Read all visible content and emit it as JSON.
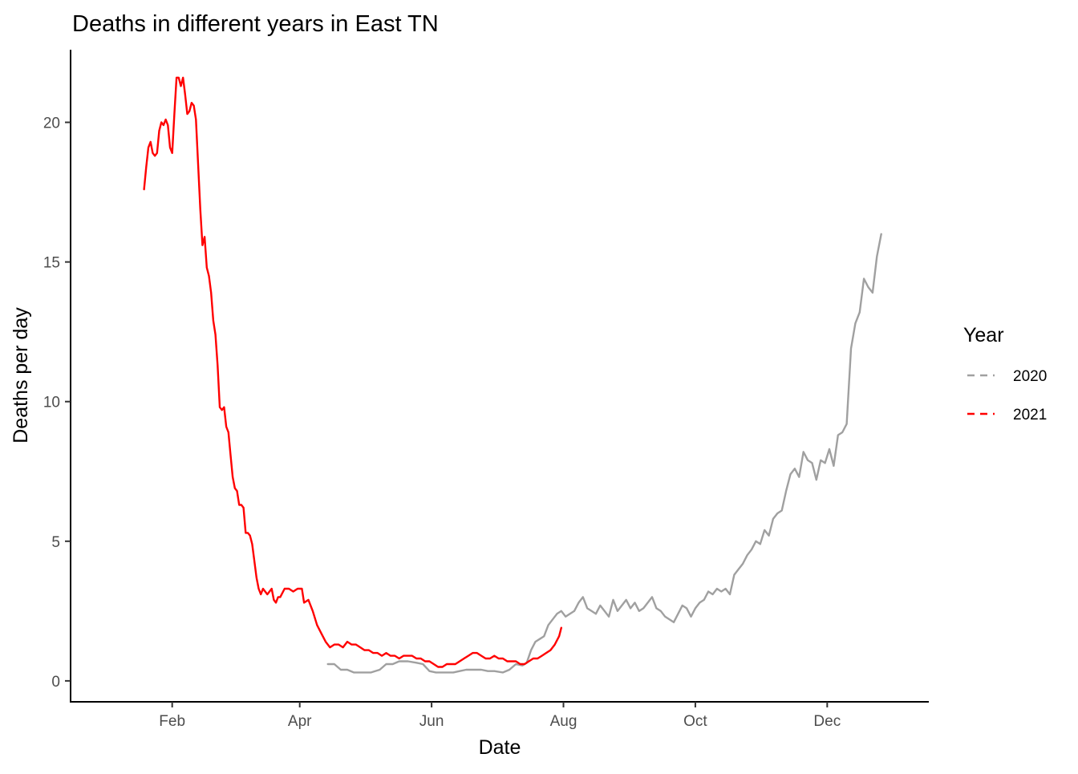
{
  "chart_data": {
    "type": "line",
    "title": "Deaths in different years in East TN",
    "xlabel": "Date",
    "ylabel": "Deaths per day",
    "x_ticks": [
      {
        "label": "Feb",
        "day": 32
      },
      {
        "label": "Apr",
        "day": 91
      },
      {
        "label": "Jun",
        "day": 152
      },
      {
        "label": "Aug",
        "day": 213
      },
      {
        "label": "Oct",
        "day": 274
      },
      {
        "label": "Dec",
        "day": 335
      }
    ],
    "y_ticks": [
      0,
      5,
      10,
      15,
      20
    ],
    "xlim": [
      -15,
      382
    ],
    "ylim": [
      -0.75,
      22.6
    ],
    "grid": false,
    "legend": {
      "title": "Year",
      "position": "right"
    },
    "series": [
      {
        "name": "2020",
        "color": "#a0a0a0",
        "points": [
          [
            104,
            0.6
          ],
          [
            107,
            0.6
          ],
          [
            110,
            0.4
          ],
          [
            113,
            0.4
          ],
          [
            116,
            0.3
          ],
          [
            120,
            0.3
          ],
          [
            124,
            0.3
          ],
          [
            128,
            0.4
          ],
          [
            131,
            0.6
          ],
          [
            134,
            0.6
          ],
          [
            137,
            0.7
          ],
          [
            141,
            0.7
          ],
          [
            145,
            0.65
          ],
          [
            148,
            0.6
          ],
          [
            151,
            0.35
          ],
          [
            154,
            0.3
          ],
          [
            158,
            0.3
          ],
          [
            162,
            0.3
          ],
          [
            165,
            0.35
          ],
          [
            168,
            0.4
          ],
          [
            171,
            0.4
          ],
          [
            175,
            0.4
          ],
          [
            178,
            0.35
          ],
          [
            181,
            0.35
          ],
          [
            185,
            0.3
          ],
          [
            188,
            0.4
          ],
          [
            191,
            0.6
          ],
          [
            194,
            0.55
          ],
          [
            196,
            0.65
          ],
          [
            198,
            1.1
          ],
          [
            200,
            1.4
          ],
          [
            202,
            1.5
          ],
          [
            204,
            1.6
          ],
          [
            206,
            2.0
          ],
          [
            208,
            2.2
          ],
          [
            210,
            2.4
          ],
          [
            212,
            2.5
          ],
          [
            214,
            2.3
          ],
          [
            216,
            2.4
          ],
          [
            218,
            2.5
          ],
          [
            220,
            2.8
          ],
          [
            222,
            3.0
          ],
          [
            224,
            2.6
          ],
          [
            226,
            2.5
          ],
          [
            228,
            2.4
          ],
          [
            230,
            2.7
          ],
          [
            232,
            2.5
          ],
          [
            234,
            2.3
          ],
          [
            236,
            2.9
          ],
          [
            238,
            2.5
          ],
          [
            240,
            2.7
          ],
          [
            242,
            2.9
          ],
          [
            244,
            2.6
          ],
          [
            246,
            2.8
          ],
          [
            248,
            2.5
          ],
          [
            250,
            2.6
          ],
          [
            252,
            2.8
          ],
          [
            254,
            3.0
          ],
          [
            256,
            2.6
          ],
          [
            258,
            2.5
          ],
          [
            260,
            2.3
          ],
          [
            262,
            2.2
          ],
          [
            264,
            2.1
          ],
          [
            266,
            2.4
          ],
          [
            268,
            2.7
          ],
          [
            270,
            2.6
          ],
          [
            272,
            2.3
          ],
          [
            274,
            2.6
          ],
          [
            276,
            2.8
          ],
          [
            278,
            2.9
          ],
          [
            280,
            3.2
          ],
          [
            282,
            3.1
          ],
          [
            284,
            3.3
          ],
          [
            286,
            3.2
          ],
          [
            288,
            3.3
          ],
          [
            290,
            3.1
          ],
          [
            292,
            3.8
          ],
          [
            294,
            4.0
          ],
          [
            296,
            4.2
          ],
          [
            298,
            4.5
          ],
          [
            300,
            4.7
          ],
          [
            302,
            5.0
          ],
          [
            304,
            4.9
          ],
          [
            306,
            5.4
          ],
          [
            308,
            5.2
          ],
          [
            310,
            5.8
          ],
          [
            312,
            6.0
          ],
          [
            314,
            6.1
          ],
          [
            316,
            6.8
          ],
          [
            318,
            7.4
          ],
          [
            320,
            7.6
          ],
          [
            322,
            7.3
          ],
          [
            324,
            8.2
          ],
          [
            326,
            7.9
          ],
          [
            328,
            7.8
          ],
          [
            330,
            7.2
          ],
          [
            332,
            7.9
          ],
          [
            334,
            7.8
          ],
          [
            336,
            8.3
          ],
          [
            338,
            7.7
          ],
          [
            340,
            8.8
          ],
          [
            342,
            8.9
          ],
          [
            344,
            9.2
          ],
          [
            346,
            11.9
          ],
          [
            348,
            12.8
          ],
          [
            350,
            13.2
          ],
          [
            352,
            14.4
          ],
          [
            354,
            14.1
          ],
          [
            356,
            13.9
          ],
          [
            358,
            15.2
          ],
          [
            360,
            16.0
          ]
        ]
      },
      {
        "name": "2021",
        "color": "#ff0000",
        "points": [
          [
            19,
            17.6
          ],
          [
            20,
            18.4
          ],
          [
            21,
            19.1
          ],
          [
            22,
            19.3
          ],
          [
            23,
            18.9
          ],
          [
            24,
            18.8
          ],
          [
            25,
            18.9
          ],
          [
            26,
            19.7
          ],
          [
            27,
            20.0
          ],
          [
            28,
            19.9
          ],
          [
            29,
            20.1
          ],
          [
            30,
            19.9
          ],
          [
            31,
            19.1
          ],
          [
            32,
            18.9
          ],
          [
            33,
            20.3
          ],
          [
            34,
            21.6
          ],
          [
            35,
            21.6
          ],
          [
            36,
            21.3
          ],
          [
            37,
            21.6
          ],
          [
            38,
            21.0
          ],
          [
            39,
            20.3
          ],
          [
            40,
            20.4
          ],
          [
            41,
            20.7
          ],
          [
            42,
            20.6
          ],
          [
            43,
            20.1
          ],
          [
            44,
            18.5
          ],
          [
            45,
            16.9
          ],
          [
            46,
            15.6
          ],
          [
            47,
            15.9
          ],
          [
            48,
            14.8
          ],
          [
            49,
            14.5
          ],
          [
            50,
            13.9
          ],
          [
            51,
            12.9
          ],
          [
            52,
            12.4
          ],
          [
            53,
            11.3
          ],
          [
            54,
            9.8
          ],
          [
            55,
            9.7
          ],
          [
            56,
            9.8
          ],
          [
            57,
            9.1
          ],
          [
            58,
            8.9
          ],
          [
            59,
            8.1
          ],
          [
            60,
            7.3
          ],
          [
            61,
            6.9
          ],
          [
            62,
            6.8
          ],
          [
            63,
            6.3
          ],
          [
            64,
            6.3
          ],
          [
            65,
            6.2
          ],
          [
            66,
            5.3
          ],
          [
            67,
            5.3
          ],
          [
            68,
            5.2
          ],
          [
            69,
            4.9
          ],
          [
            70,
            4.3
          ],
          [
            71,
            3.7
          ],
          [
            72,
            3.3
          ],
          [
            73,
            3.1
          ],
          [
            74,
            3.3
          ],
          [
            75,
            3.2
          ],
          [
            76,
            3.1
          ],
          [
            77,
            3.2
          ],
          [
            78,
            3.3
          ],
          [
            79,
            2.9
          ],
          [
            80,
            2.8
          ],
          [
            81,
            3.0
          ],
          [
            82,
            3.0
          ],
          [
            84,
            3.3
          ],
          [
            86,
            3.3
          ],
          [
            88,
            3.2
          ],
          [
            90,
            3.3
          ],
          [
            92,
            3.3
          ],
          [
            93,
            2.8
          ],
          [
            95,
            2.9
          ],
          [
            97,
            2.5
          ],
          [
            99,
            2.0
          ],
          [
            101,
            1.7
          ],
          [
            103,
            1.4
          ],
          [
            105,
            1.2
          ],
          [
            107,
            1.3
          ],
          [
            109,
            1.3
          ],
          [
            111,
            1.2
          ],
          [
            113,
            1.4
          ],
          [
            115,
            1.3
          ],
          [
            117,
            1.3
          ],
          [
            119,
            1.2
          ],
          [
            121,
            1.1
          ],
          [
            123,
            1.1
          ],
          [
            125,
            1.0
          ],
          [
            127,
            1.0
          ],
          [
            129,
            0.9
          ],
          [
            131,
            1.0
          ],
          [
            133,
            0.9
          ],
          [
            135,
            0.9
          ],
          [
            137,
            0.8
          ],
          [
            139,
            0.9
          ],
          [
            141,
            0.9
          ],
          [
            143,
            0.9
          ],
          [
            145,
            0.8
          ],
          [
            147,
            0.8
          ],
          [
            149,
            0.7
          ],
          [
            151,
            0.7
          ],
          [
            153,
            0.6
          ],
          [
            155,
            0.5
          ],
          [
            157,
            0.5
          ],
          [
            159,
            0.6
          ],
          [
            161,
            0.6
          ],
          [
            163,
            0.6
          ],
          [
            165,
            0.7
          ],
          [
            167,
            0.8
          ],
          [
            169,
            0.9
          ],
          [
            171,
            1.0
          ],
          [
            173,
            1.0
          ],
          [
            175,
            0.9
          ],
          [
            177,
            0.8
          ],
          [
            179,
            0.8
          ],
          [
            181,
            0.9
          ],
          [
            183,
            0.8
          ],
          [
            185,
            0.8
          ],
          [
            187,
            0.7
          ],
          [
            189,
            0.7
          ],
          [
            191,
            0.7
          ],
          [
            193,
            0.6
          ],
          [
            195,
            0.6
          ],
          [
            197,
            0.7
          ],
          [
            199,
            0.8
          ],
          [
            201,
            0.8
          ],
          [
            203,
            0.9
          ],
          [
            205,
            1.0
          ],
          [
            207,
            1.1
          ],
          [
            209,
            1.3
          ],
          [
            211,
            1.6
          ],
          [
            212,
            1.9
          ]
        ]
      }
    ]
  }
}
